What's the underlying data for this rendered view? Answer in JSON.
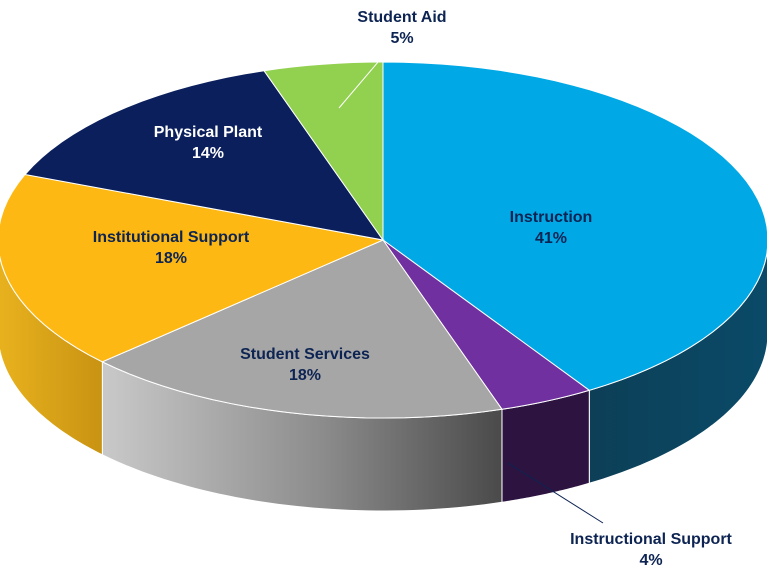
{
  "chart_data": {
    "type": "pie",
    "three_d": true,
    "title": "",
    "legend": "none",
    "slices": [
      {
        "label": "Instruction",
        "value": 41,
        "value_label": "41%",
        "color": "#00a9e6",
        "side_color": "#0b4560",
        "text_color": "#0d2453"
      },
      {
        "label": "Instructional Support",
        "value": 4,
        "value_label": "4%",
        "color": "#7030a0",
        "side_color": "#2c1340",
        "text_color": "#0d2453"
      },
      {
        "label": "Student Services",
        "value": 18,
        "value_label": "18%",
        "color": "#a6a6a6",
        "side_color": "#6b6b6b",
        "text_color": "#0d2453"
      },
      {
        "label": "Institutional Support",
        "value": 18,
        "value_label": "18%",
        "color": "#fdb813",
        "side_color": "#d9a51c",
        "text_color": "#0d2453"
      },
      {
        "label": "Physical Plant",
        "value": 14,
        "value_label": "14%",
        "color": "#0a1f5c",
        "side_color": "#071540",
        "text_color": "#ffffff"
      },
      {
        "label": "Student Aid",
        "value": 5,
        "value_label": "5%",
        "color": "#92d050",
        "side_color": "#6fa63a",
        "text_color": "#0d2453"
      }
    ]
  }
}
